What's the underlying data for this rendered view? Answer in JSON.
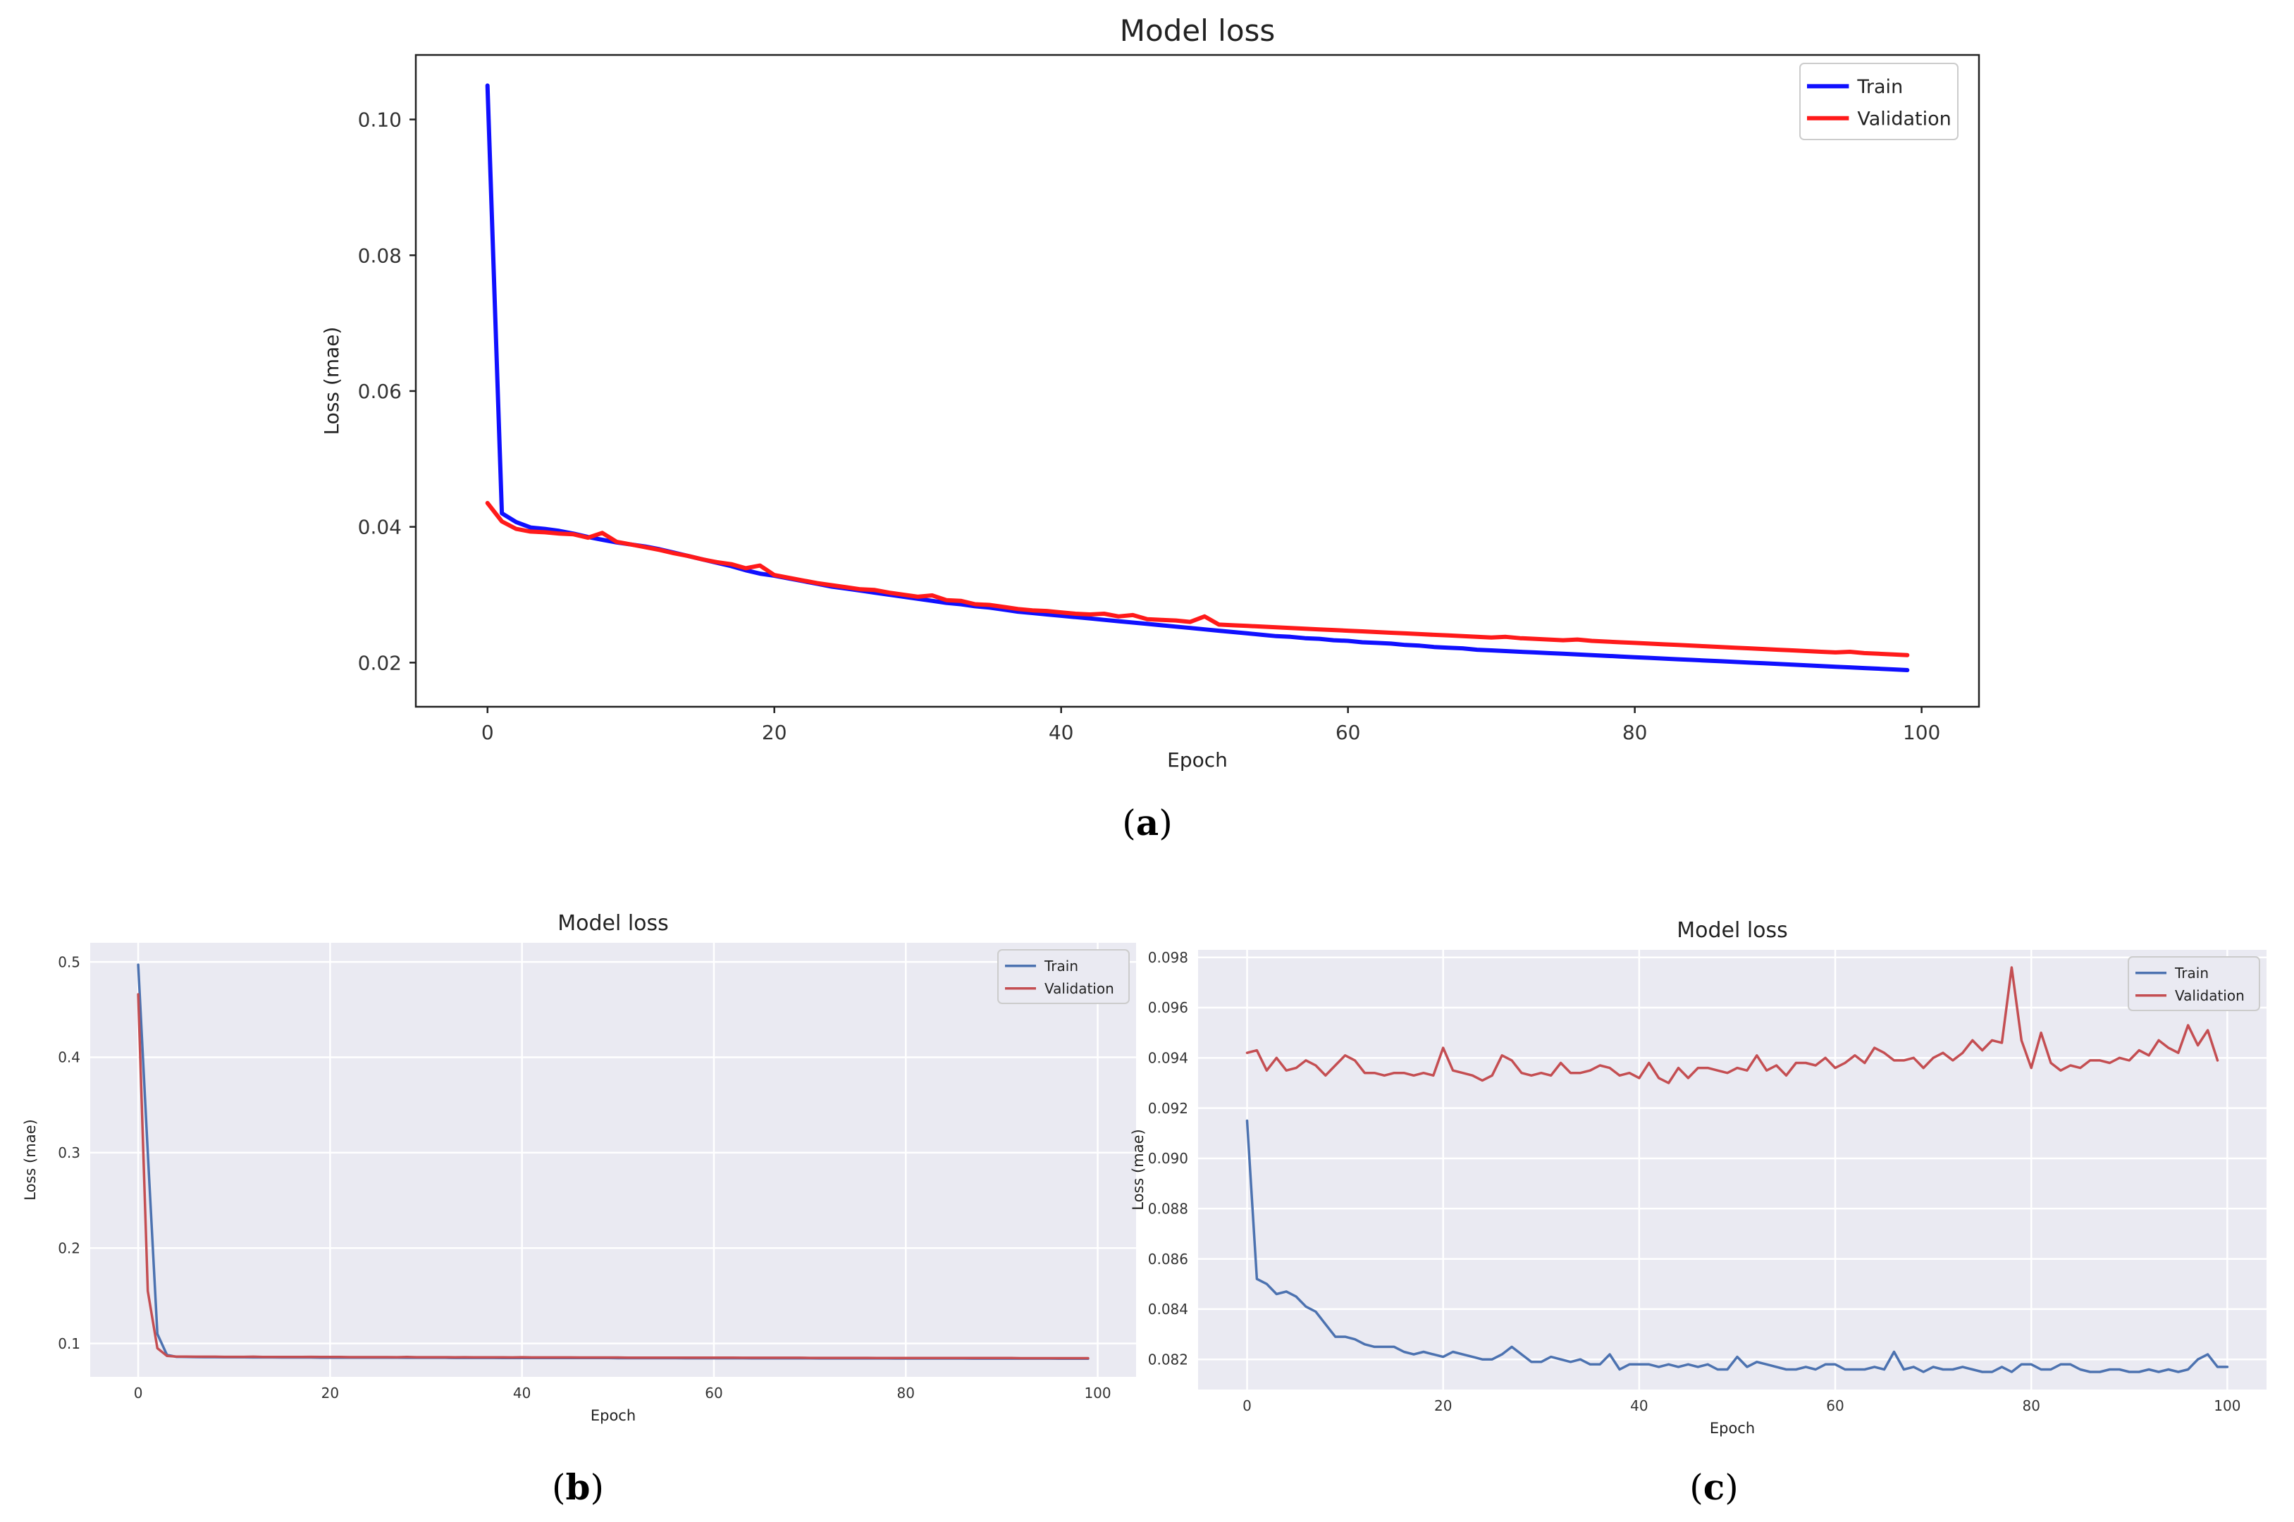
{
  "chart_data": [
    {
      "id": "a",
      "type": "line",
      "title": "Model loss",
      "xlabel": "Epoch",
      "ylabel": "Loss (mae)",
      "xlim": [
        -5,
        104
      ],
      "ylim": [
        0.0135,
        0.1095
      ],
      "xticks": [
        0,
        20,
        40,
        60,
        80,
        100
      ],
      "yticks": [
        0.02,
        0.04,
        0.06,
        0.08,
        0.1
      ],
      "ytick_labels": [
        "0.02",
        "0.04",
        "0.06",
        "0.08",
        "0.10"
      ],
      "xtick_labels": [
        "0",
        "20",
        "40",
        "60",
        "80",
        "100"
      ],
      "grid": false,
      "legend_position": "top-right",
      "series": [
        {
          "name": "Train",
          "color": "#1010ff",
          "values": [
            0.105,
            0.042,
            0.0407,
            0.0399,
            0.0397,
            0.0394,
            0.039,
            0.0385,
            0.0381,
            0.0377,
            0.0374,
            0.0371,
            0.0367,
            0.0362,
            0.0357,
            0.0352,
            0.0347,
            0.0342,
            0.0336,
            0.0331,
            0.0328,
            0.0324,
            0.032,
            0.0316,
            0.0312,
            0.0309,
            0.0306,
            0.0303,
            0.03,
            0.0297,
            0.0294,
            0.0291,
            0.0288,
            0.0286,
            0.0283,
            0.0281,
            0.0278,
            0.0275,
            0.0273,
            0.0271,
            0.0269,
            0.0267,
            0.0265,
            0.0263,
            0.0261,
            0.0259,
            0.0257,
            0.0255,
            0.0253,
            0.0251,
            0.0249,
            0.0247,
            0.0245,
            0.0243,
            0.0241,
            0.0239,
            0.0238,
            0.0236,
            0.0235,
            0.0233,
            0.0232,
            0.023,
            0.0229,
            0.0228,
            0.0226,
            0.0225,
            0.0223,
            0.0222,
            0.0221,
            0.0219,
            0.0218,
            0.0217,
            0.0216,
            0.0215,
            0.0214,
            0.0213,
            0.0212,
            0.0211,
            0.021,
            0.0209,
            0.0208,
            0.0207,
            0.0206,
            0.0205,
            0.0204,
            0.0203,
            0.0202,
            0.0201,
            0.02,
            0.0199,
            0.0198,
            0.0197,
            0.0196,
            0.0195,
            0.0194,
            0.0193,
            0.0192,
            0.0191,
            0.019,
            0.0189
          ]
        },
        {
          "name": "Validation",
          "color": "#ff1a1a",
          "values": [
            0.0435,
            0.0408,
            0.0397,
            0.0393,
            0.0392,
            0.039,
            0.0389,
            0.0384,
            0.0391,
            0.0378,
            0.0374,
            0.037,
            0.0366,
            0.0361,
            0.0357,
            0.0352,
            0.0348,
            0.0345,
            0.0339,
            0.0343,
            0.0329,
            0.0325,
            0.0321,
            0.0317,
            0.0314,
            0.0311,
            0.0308,
            0.0307,
            0.0303,
            0.03,
            0.0297,
            0.0299,
            0.0292,
            0.0291,
            0.0286,
            0.0285,
            0.0282,
            0.0279,
            0.0277,
            0.0276,
            0.0274,
            0.0272,
            0.0271,
            0.0272,
            0.0268,
            0.027,
            0.0264,
            0.0263,
            0.0262,
            0.026,
            0.0268,
            0.0256,
            0.0255,
            0.0254,
            0.0253,
            0.0252,
            0.0251,
            0.025,
            0.0249,
            0.0248,
            0.0247,
            0.0246,
            0.0245,
            0.0244,
            0.0243,
            0.0242,
            0.0241,
            0.024,
            0.0239,
            0.0238,
            0.0237,
            0.0238,
            0.0236,
            0.0235,
            0.0234,
            0.0233,
            0.0234,
            0.0232,
            0.0231,
            0.023,
            0.0229,
            0.0228,
            0.0227,
            0.0226,
            0.0225,
            0.0224,
            0.0223,
            0.0222,
            0.0221,
            0.022,
            0.0219,
            0.0218,
            0.0217,
            0.0216,
            0.0215,
            0.0216,
            0.0214,
            0.0213,
            0.0212,
            0.0211
          ]
        }
      ]
    },
    {
      "id": "b",
      "type": "line",
      "title": "Model loss",
      "xlabel": "Epoch",
      "ylabel": "Loss (mae)",
      "xlim": [
        -5,
        104
      ],
      "ylim": [
        0.065,
        0.52
      ],
      "xticks": [
        0,
        20,
        40,
        60,
        80,
        100
      ],
      "yticks": [
        0.1,
        0.2,
        0.3,
        0.4,
        0.5
      ],
      "ytick_labels": [
        "0.1",
        "0.2",
        "0.3",
        "0.4",
        "0.5"
      ],
      "xtick_labels": [
        "0",
        "20",
        "40",
        "60",
        "80",
        "100"
      ],
      "grid": true,
      "legend_position": "top-right",
      "series": [
        {
          "name": "Train",
          "color": "#4c72b0",
          "values": [
            0.497,
            0.3,
            0.11,
            0.088,
            0.086,
            0.0858,
            0.0857,
            0.0856,
            0.0856,
            0.0855,
            0.0855,
            0.0855,
            0.0854,
            0.0854,
            0.0854,
            0.0853,
            0.0853,
            0.0853,
            0.0853,
            0.0852,
            0.0852,
            0.0852,
            0.0852,
            0.0851,
            0.0851,
            0.0851,
            0.0851,
            0.0851,
            0.085,
            0.085,
            0.085,
            0.085,
            0.085,
            0.0849,
            0.0849,
            0.0849,
            0.0849,
            0.0849,
            0.0848,
            0.0848,
            0.0848,
            0.0848,
            0.0848,
            0.0848,
            0.0847,
            0.0847,
            0.0847,
            0.0847,
            0.0847,
            0.0847,
            0.0846,
            0.0846,
            0.0846,
            0.0846,
            0.0846,
            0.0846,
            0.0846,
            0.0845,
            0.0845,
            0.0845,
            0.0845,
            0.0845,
            0.0845,
            0.0845,
            0.0844,
            0.0844,
            0.0844,
            0.0844,
            0.0844,
            0.0844,
            0.0844,
            0.0843,
            0.0843,
            0.0843,
            0.0843,
            0.0843,
            0.0843,
            0.0843,
            0.0843,
            0.0842,
            0.0842,
            0.0842,
            0.0842,
            0.0842,
            0.0842,
            0.0842,
            0.0842,
            0.0841,
            0.0841,
            0.0841,
            0.0841,
            0.0841,
            0.0841,
            0.0841,
            0.0841,
            0.0841,
            0.084,
            0.084,
            0.084,
            0.084
          ]
        },
        {
          "name": "Validation",
          "color": "#c44e52",
          "values": [
            0.466,
            0.155,
            0.095,
            0.087,
            0.0862,
            0.0862,
            0.0861,
            0.0861,
            0.0861,
            0.086,
            0.086,
            0.086,
            0.0861,
            0.0859,
            0.0859,
            0.0859,
            0.0859,
            0.0858,
            0.086,
            0.0858,
            0.0858,
            0.0858,
            0.0857,
            0.0857,
            0.0857,
            0.0857,
            0.0857,
            0.0856,
            0.0858,
            0.0856,
            0.0856,
            0.0856,
            0.0856,
            0.0855,
            0.0856,
            0.0855,
            0.0855,
            0.0855,
            0.0855,
            0.0854,
            0.0856,
            0.0854,
            0.0854,
            0.0854,
            0.0854,
            0.0854,
            0.0853,
            0.0853,
            0.0853,
            0.0853,
            0.0853,
            0.0852,
            0.0852,
            0.0852,
            0.0852,
            0.0852,
            0.0852,
            0.0851,
            0.0851,
            0.0851,
            0.0851,
            0.0851,
            0.0851,
            0.085,
            0.085,
            0.085,
            0.085,
            0.085,
            0.085,
            0.085,
            0.0849,
            0.0849,
            0.0849,
            0.0849,
            0.0849,
            0.0849,
            0.0849,
            0.0848,
            0.0848,
            0.0848,
            0.0848,
            0.0848,
            0.0848,
            0.0848,
            0.0847,
            0.0847,
            0.0847,
            0.0847,
            0.0847,
            0.0847,
            0.0847,
            0.0847,
            0.0846,
            0.0846,
            0.0846,
            0.0846,
            0.0846,
            0.0846,
            0.0846,
            0.0846
          ]
        }
      ]
    },
    {
      "id": "c",
      "type": "line",
      "title": "Model loss",
      "xlabel": "Epoch",
      "ylabel": "Loss (mae)",
      "xlim": [
        -5,
        104
      ],
      "ylim": [
        0.0808,
        0.0983
      ],
      "xticks": [
        0,
        20,
        40,
        60,
        80,
        100
      ],
      "yticks": [
        0.082,
        0.084,
        0.086,
        0.088,
        0.09,
        0.092,
        0.094,
        0.096,
        0.098
      ],
      "ytick_labels": [
        "0.082",
        "0.084",
        "0.086",
        "0.088",
        "0.090",
        "0.092",
        "0.094",
        "0.096",
        "0.098"
      ],
      "xtick_labels": [
        "0",
        "20",
        "40",
        "60",
        "80",
        "100"
      ],
      "grid": true,
      "legend_position": "top-right",
      "series": [
        {
          "name": "Train",
          "color": "#4c72b0",
          "values": [
            0.0915,
            0.0852,
            0.085,
            0.0846,
            0.0847,
            0.0845,
            0.0841,
            0.0839,
            0.0834,
            0.0829,
            0.0829,
            0.0828,
            0.0826,
            0.0825,
            0.0825,
            0.0825,
            0.0823,
            0.0822,
            0.0823,
            0.0822,
            0.0821,
            0.0823,
            0.0822,
            0.0821,
            0.082,
            0.082,
            0.0822,
            0.0825,
            0.0822,
            0.0819,
            0.0819,
            0.0821,
            0.082,
            0.0819,
            0.082,
            0.0818,
            0.0818,
            0.0822,
            0.0816,
            0.0818,
            0.0818,
            0.0818,
            0.0817,
            0.0818,
            0.0817,
            0.0818,
            0.0817,
            0.0818,
            0.0816,
            0.0816,
            0.0821,
            0.0817,
            0.0819,
            0.0818,
            0.0817,
            0.0816,
            0.0816,
            0.0817,
            0.0816,
            0.0818,
            0.0818,
            0.0816,
            0.0816,
            0.0816,
            0.0817,
            0.0816,
            0.0823,
            0.0816,
            0.0817,
            0.0815,
            0.0817,
            0.0816,
            0.0816,
            0.0817,
            0.0816,
            0.0815,
            0.0815,
            0.0817,
            0.0815,
            0.0818,
            0.0818,
            0.0816,
            0.0816,
            0.0818,
            0.0818,
            0.0816,
            0.0815,
            0.0815,
            0.0816,
            0.0816,
            0.0815,
            0.0815,
            0.0816,
            0.0815,
            0.0816,
            0.0815,
            0.0816,
            0.082,
            0.0822,
            0.0817,
            0.0817
          ]
        },
        {
          "name": "Validation",
          "color": "#c44e52",
          "values": [
            0.0942,
            0.0943,
            0.0935,
            0.094,
            0.0935,
            0.0936,
            0.0939,
            0.0937,
            0.0933,
            0.0937,
            0.0941,
            0.0939,
            0.0934,
            0.0934,
            0.0933,
            0.0934,
            0.0934,
            0.0933,
            0.0934,
            0.0933,
            0.0944,
            0.0935,
            0.0934,
            0.0933,
            0.0931,
            0.0933,
            0.0941,
            0.0939,
            0.0934,
            0.0933,
            0.0934,
            0.0933,
            0.0938,
            0.0934,
            0.0934,
            0.0935,
            0.0937,
            0.0936,
            0.0933,
            0.0934,
            0.0932,
            0.0938,
            0.0932,
            0.093,
            0.0936,
            0.0932,
            0.0936,
            0.0936,
            0.0935,
            0.0934,
            0.0936,
            0.0935,
            0.0941,
            0.0935,
            0.0937,
            0.0933,
            0.0938,
            0.0938,
            0.0937,
            0.094,
            0.0936,
            0.0938,
            0.0941,
            0.0938,
            0.0944,
            0.0942,
            0.0939,
            0.0939,
            0.094,
            0.0936,
            0.094,
            0.0942,
            0.0939,
            0.0942,
            0.0947,
            0.0943,
            0.0947,
            0.0946,
            0.0976,
            0.0947,
            0.0936,
            0.095,
            0.0938,
            0.0935,
            0.0937,
            0.0936,
            0.0939,
            0.0939,
            0.0938,
            0.094,
            0.0939,
            0.0943,
            0.0941,
            0.0947,
            0.0944,
            0.0942,
            0.0953,
            0.0945,
            0.0951,
            0.0939
          ]
        }
      ]
    }
  ],
  "sublabels": [
    "(a)",
    "(b)",
    "(c)"
  ]
}
